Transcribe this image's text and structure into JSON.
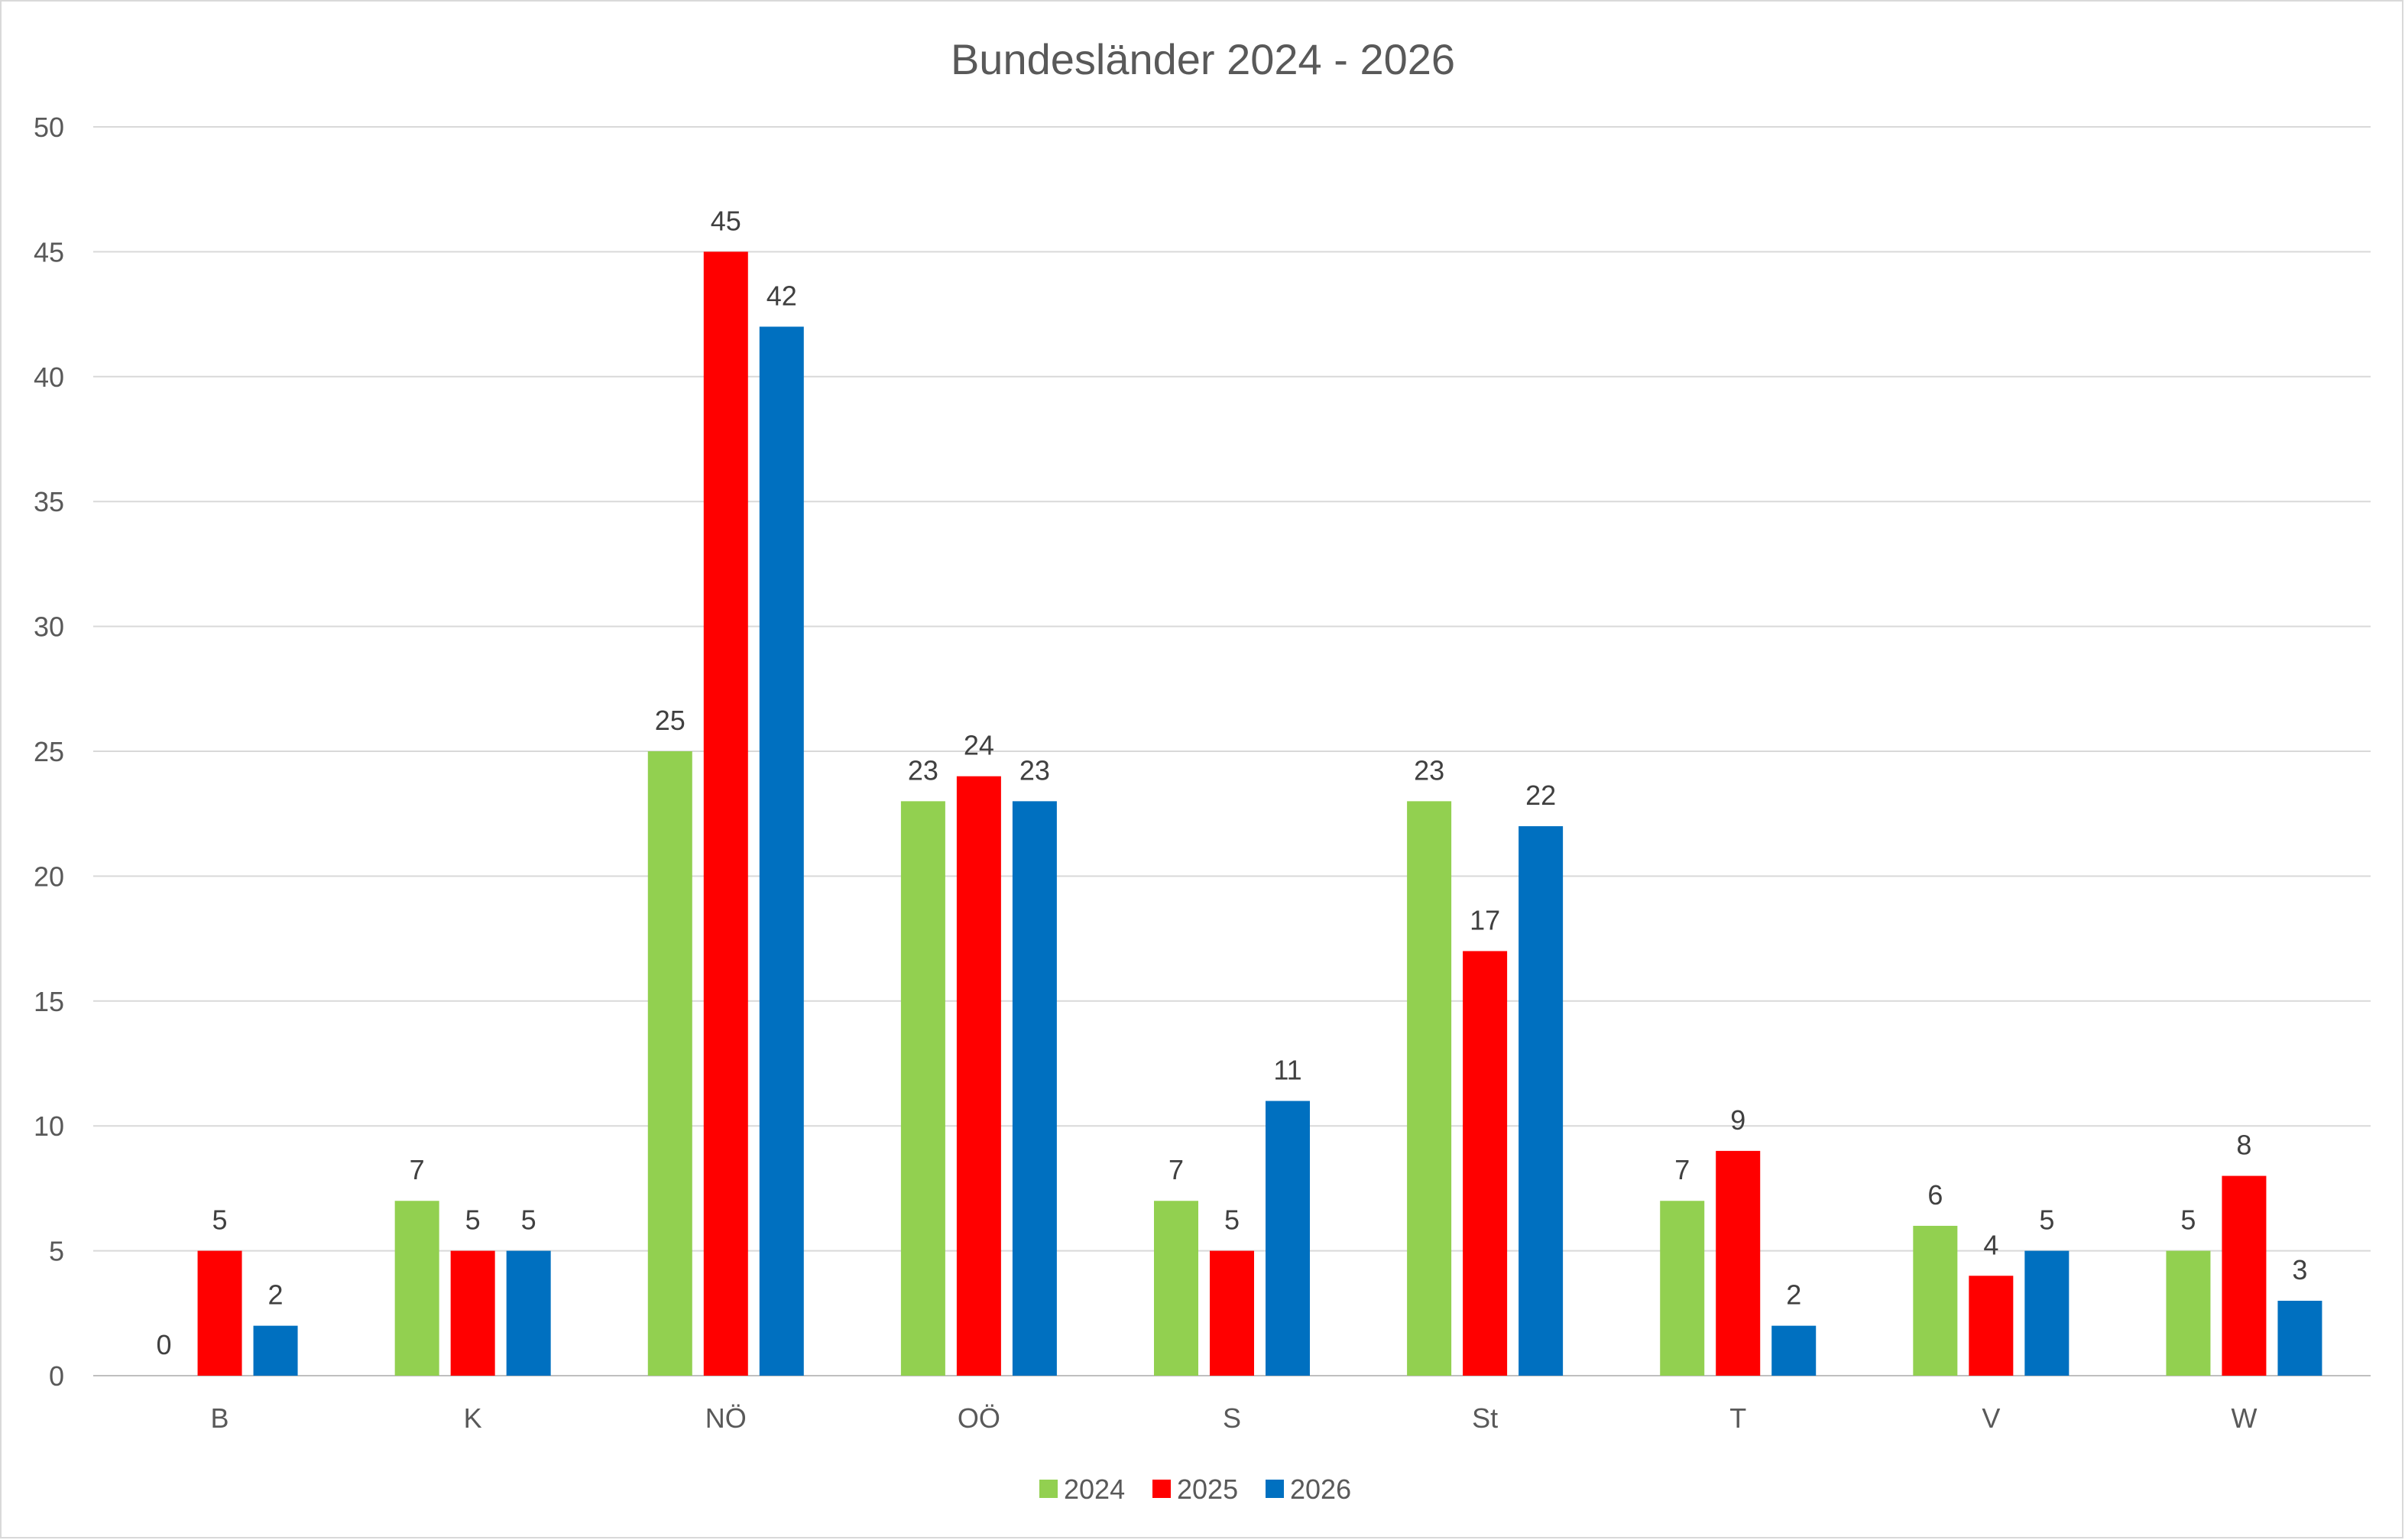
{
  "chart_data": {
    "type": "bar",
    "title": "Bundesländer 2024 - 2026",
    "xlabel": "",
    "ylabel": "",
    "categories": [
      "B",
      "K",
      "NÖ",
      "OÖ",
      "S",
      "St",
      "T",
      "V",
      "W"
    ],
    "series": [
      {
        "name": "2024",
        "color": "#92d050",
        "values": [
          0,
          7,
          25,
          23,
          7,
          23,
          7,
          6,
          5
        ]
      },
      {
        "name": "2025",
        "color": "#ff0000",
        "values": [
          5,
          5,
          45,
          24,
          5,
          17,
          9,
          4,
          8
        ]
      },
      {
        "name": "2026",
        "color": "#0070c0",
        "values": [
          2,
          5,
          42,
          23,
          11,
          22,
          2,
          5,
          3
        ]
      }
    ],
    "ylim": [
      0,
      50
    ],
    "yticks": [
      0,
      5,
      10,
      15,
      20,
      25,
      30,
      35,
      40,
      45,
      50
    ],
    "grid": true,
    "legend_position": "bottom",
    "data_labels": true
  }
}
